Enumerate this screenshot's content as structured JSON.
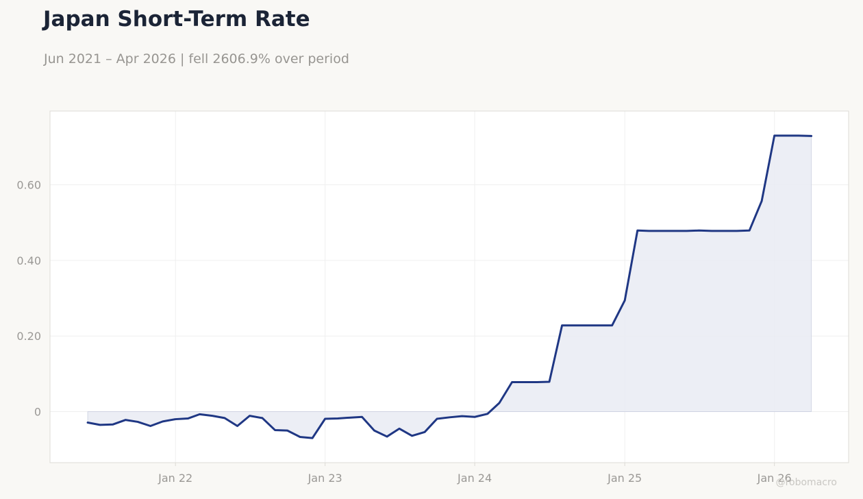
{
  "title": "Japan Short-Term Rate",
  "subtitle": "Jun 2021 – Apr 2026 | fell 2606.9% over period",
  "watermark": "@robomacro",
  "colors": {
    "line": "#1f3784",
    "fill": "#e9ebf3",
    "grid": "#efefef",
    "axis_text": "#9a9895",
    "border": "#dddbd6",
    "background": "#f9f8f5",
    "plot_background": "#ffffff"
  },
  "chart_data": {
    "type": "area",
    "title": "Japan Short-Term Rate",
    "subtitle": "Jun 2021 – Apr 2026 | fell 2606.9% over period",
    "xlabel": "",
    "ylabel": "",
    "grid": true,
    "legend": "none",
    "ylim": [
      -0.135,
      0.795
    ],
    "xlim": [
      "2021-03-01",
      "2026-07-01"
    ],
    "x_ticks": [
      {
        "label": "Jan 22",
        "date": "2022-01-01"
      },
      {
        "label": "Jan 23",
        "date": "2023-01-01"
      },
      {
        "label": "Jan 24",
        "date": "2024-01-01"
      },
      {
        "label": "Jan 25",
        "date": "2025-01-01"
      },
      {
        "label": "Jan 26",
        "date": "2026-01-01"
      }
    ],
    "y_ticks": [
      {
        "label": "0",
        "value": 0
      },
      {
        "label": "0.20",
        "value": 0.2
      },
      {
        "label": "0.40",
        "value": 0.4
      },
      {
        "label": "0.60",
        "value": 0.6
      }
    ],
    "series": [
      {
        "x": [
          "2021-06-01",
          "2021-07-01",
          "2021-08-01",
          "2021-09-01",
          "2021-10-01",
          "2021-11-01",
          "2021-12-01",
          "2022-01-01",
          "2022-02-01",
          "2022-03-01",
          "2022-04-01",
          "2022-05-01",
          "2022-06-01",
          "2022-07-01",
          "2022-08-01",
          "2022-09-01",
          "2022-10-01",
          "2022-11-01",
          "2022-12-01",
          "2023-01-01",
          "2023-02-01",
          "2023-03-01",
          "2023-04-01",
          "2023-05-01",
          "2023-06-01",
          "2023-07-01",
          "2023-08-01",
          "2023-09-01",
          "2023-10-01",
          "2023-11-01",
          "2023-12-01",
          "2024-01-01",
          "2024-02-01",
          "2024-03-01",
          "2024-04-01",
          "2024-05-01",
          "2024-06-01",
          "2024-07-01",
          "2024-08-01",
          "2024-09-01",
          "2024-10-01",
          "2024-11-01",
          "2024-12-01",
          "2025-01-01",
          "2025-02-01",
          "2025-03-01",
          "2025-04-01",
          "2025-05-01",
          "2025-06-01",
          "2025-07-01",
          "2025-08-01",
          "2025-09-01",
          "2025-10-01",
          "2025-11-01",
          "2025-12-01",
          "2026-01-01",
          "2026-02-01",
          "2026-03-01",
          "2026-04-01"
        ],
        "values": [
          -0.029,
          -0.035,
          -0.034,
          -0.022,
          -0.027,
          -0.038,
          -0.026,
          -0.02,
          -0.018,
          -0.007,
          -0.011,
          -0.017,
          -0.038,
          -0.011,
          -0.017,
          -0.049,
          -0.05,
          -0.067,
          -0.07,
          -0.019,
          -0.018,
          -0.016,
          -0.014,
          -0.05,
          -0.066,
          -0.045,
          -0.064,
          -0.054,
          -0.019,
          -0.015,
          -0.012,
          -0.014,
          -0.006,
          0.023,
          0.078,
          0.078,
          0.078,
          0.079,
          0.228,
          0.228,
          0.228,
          0.228,
          0.228,
          0.294,
          0.479,
          0.478,
          0.478,
          0.478,
          0.478,
          0.479,
          0.478,
          0.478,
          0.478,
          0.479,
          0.557,
          0.73,
          0.73,
          0.73,
          0.729
        ]
      }
    ]
  }
}
